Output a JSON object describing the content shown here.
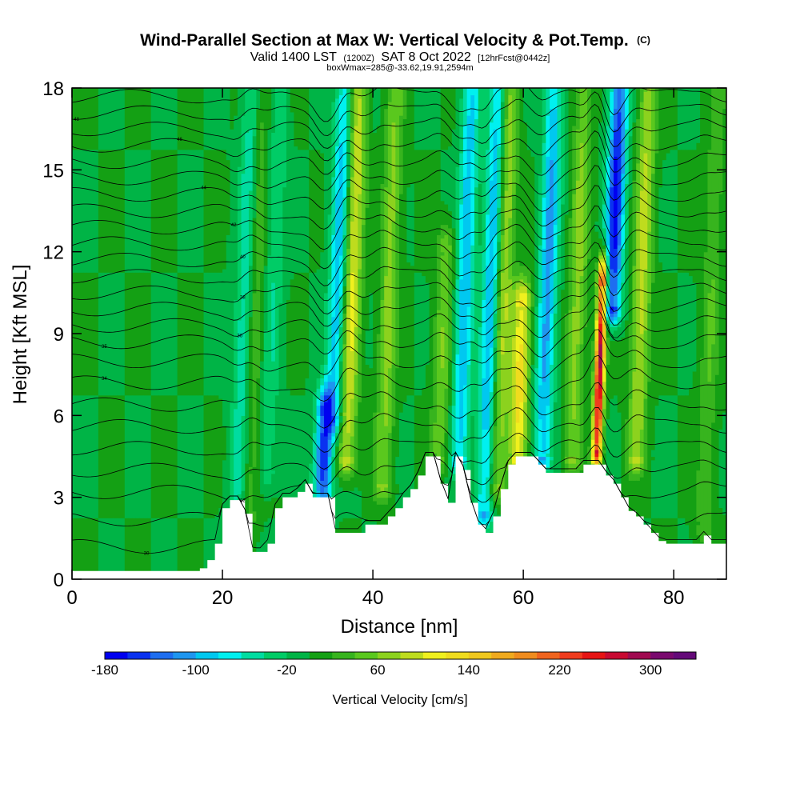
{
  "chart_data": {
    "type": "heatmap",
    "title": "Wind-Parallel Section at Max W: Vertical Velocity & Pot.Temp.",
    "title_mark": "(C)",
    "subtitle_a": "Valid 1400 LST",
    "subtitle_utc": "(1200Z)",
    "subtitle_b": "SAT 8 Oct 2022",
    "subtitle_fcst": "[12hrFcst@0442z]",
    "subtitle2": "boxWmax=285@-33.62,19.91,2594m",
    "xlabel": "Distance [nm]",
    "ylabel": "Height [Kft MSL]",
    "xlim": [
      0,
      87
    ],
    "ylim": [
      0,
      18
    ],
    "xticks": [
      0,
      20,
      40,
      60,
      80
    ],
    "yticks": [
      0,
      3,
      6,
      9,
      12,
      15,
      18
    ],
    "x_tick_labels": [
      "0",
      "20",
      "40",
      "60",
      "80"
    ],
    "y_tick_labels": [
      "0",
      "3",
      "6",
      "9",
      "12",
      "15",
      "18"
    ],
    "colorbar": {
      "label": "Vertical Velocity [cm/s]",
      "min": -180,
      "step": 20,
      "colors": [
        "#0000f0",
        "#0a32f0",
        "#1e6ef0",
        "#1e96f0",
        "#00c8f0",
        "#00f0f0",
        "#00dca0",
        "#00cc66",
        "#00b446",
        "#14a014",
        "#37b41e",
        "#5ac81e",
        "#8cd21e",
        "#bedc1e",
        "#f0f01e",
        "#f0dc1e",
        "#f0c81e",
        "#f0aa1e",
        "#f08c1e",
        "#f0641e",
        "#f03c1e",
        "#e61414",
        "#c80a32",
        "#a00a50",
        "#7a0a6e",
        "#640a78"
      ],
      "tick_values": [
        -180,
        -100,
        -20,
        60,
        140,
        220,
        300
      ],
      "tick_labels": [
        "-180",
        "-100",
        "-20",
        "60",
        "140",
        "220",
        "300"
      ]
    },
    "background_value": 0,
    "updrafts": [
      {
        "x": 36.5,
        "z0": 4.5,
        "z1": 18,
        "w": 110
      },
      {
        "x": 41.3,
        "z0": 3.5,
        "z1": 18,
        "w": 70
      },
      {
        "x": 48.8,
        "z0": 4.5,
        "z1": 12.0,
        "w": 60
      },
      {
        "x": 56.5,
        "z0": 3.5,
        "z1": 18,
        "w": 90
      },
      {
        "x": 59.2,
        "z0": 4.5,
        "z1": 10.0,
        "w": 130
      },
      {
        "x": 66.5,
        "z0": 4.5,
        "z1": 18,
        "w": 70
      },
      {
        "x": 69.8,
        "z0": 4.8,
        "z1": 10.8,
        "w": 285
      },
      {
        "x": 75.0,
        "z0": 4.5,
        "z1": 18,
        "w": 90
      },
      {
        "x": 23.5,
        "z0": 2.5,
        "z1": 18,
        "w": 40
      },
      {
        "x": 84.0,
        "z0": 2.0,
        "z1": 18,
        "w": 40
      }
    ],
    "downdrafts": [
      {
        "x": 33.3,
        "z0": 3.0,
        "z1": 6.0,
        "w": -160
      },
      {
        "x": 34.8,
        "z0": 6.0,
        "z1": 18,
        "w": -100
      },
      {
        "x": 51.5,
        "z0": 4.5,
        "z1": 18,
        "w": -100
      },
      {
        "x": 54.8,
        "z0": 2.5,
        "z1": 18,
        "w": -110
      },
      {
        "x": 62.5,
        "z0": 4.5,
        "z1": 18,
        "w": -110
      },
      {
        "x": 71.8,
        "z0": 10.0,
        "z1": 18,
        "w": -170
      },
      {
        "x": 22.0,
        "z0": 2.5,
        "z1": 18,
        "w": -60
      },
      {
        "x": 26.0,
        "z0": 4.0,
        "z1": 18,
        "w": -40
      }
    ],
    "terrain": {
      "x": [
        0,
        17,
        18,
        19,
        20,
        21,
        22,
        23,
        24,
        25,
        26,
        27,
        28,
        29,
        30,
        31,
        32,
        33,
        34,
        35,
        36,
        37,
        38,
        39,
        40,
        41,
        42,
        43,
        44,
        45,
        46,
        47,
        48,
        49,
        50,
        51,
        52,
        53,
        54,
        55,
        56,
        57,
        58,
        59,
        60,
        61,
        62,
        63,
        64,
        65,
        66,
        67,
        68,
        69,
        70,
        71,
        72,
        73,
        74,
        75,
        76,
        77,
        78,
        79,
        80,
        81,
        82,
        83,
        84,
        85,
        86,
        87
      ],
      "z": [
        0.3,
        0.4,
        0.7,
        1.3,
        2.6,
        2.9,
        2.9,
        2.4,
        1.0,
        1.0,
        1.3,
        2.6,
        3.0,
        3.0,
        3.2,
        3.5,
        3.0,
        3.0,
        3.0,
        1.7,
        1.7,
        1.7,
        1.7,
        2.0,
        2.0,
        2.0,
        2.3,
        2.6,
        3.0,
        3.3,
        3.8,
        4.5,
        4.5,
        3.5,
        2.8,
        4.5,
        4.0,
        2.8,
        2.0,
        1.7,
        2.3,
        3.3,
        4.2,
        4.5,
        4.5,
        4.5,
        4.2,
        3.9,
        3.9,
        3.9,
        3.9,
        3.9,
        4.2,
        4.2,
        4.2,
        3.8,
        3.5,
        3.0,
        2.5,
        2.3,
        2.0,
        1.7,
        1.4,
        1.3,
        1.3,
        1.3,
        1.3,
        1.3,
        1.6,
        1.3,
        1.3,
        1.3
      ]
    },
    "isentropes": [
      {
        "base": 1.2,
        "label": "30",
        "label_x": 9.9
      },
      {
        "base": 2.2
      },
      {
        "base": 3.2,
        "label": "32",
        "label_x": 22.7
      },
      {
        "base": 4.0
      },
      {
        "base": 4.8
      },
      {
        "base": 5.6
      },
      {
        "base": 6.4
      },
      {
        "base": 7.2,
        "label": "34",
        "label_x": 4.3
      },
      {
        "base": 8.0
      },
      {
        "base": 8.7,
        "label": "35",
        "label_x": 4.3
      },
      {
        "base": 9.3,
        "label": "36",
        "label_x": 22.3
      },
      {
        "base": 9.9
      },
      {
        "base": 10.5,
        "label": "38",
        "label_x": 22.7
      },
      {
        "base": 11.1
      },
      {
        "base": 11.7,
        "label": "40",
        "label_x": 22.7
      },
      {
        "base": 12.3
      },
      {
        "base": 12.9,
        "label": "42",
        "label_x": 21.5
      },
      {
        "base": 13.5
      },
      {
        "base": 14.1,
        "label": "44",
        "label_x": 17.5
      },
      {
        "base": 14.7
      },
      {
        "base": 15.3
      },
      {
        "base": 15.9,
        "label": "46",
        "label_x": 14.3
      },
      {
        "base": 16.5
      },
      {
        "base": 17.1,
        "label": "48",
        "label_x": 0.6
      },
      {
        "base": 17.7
      }
    ]
  }
}
